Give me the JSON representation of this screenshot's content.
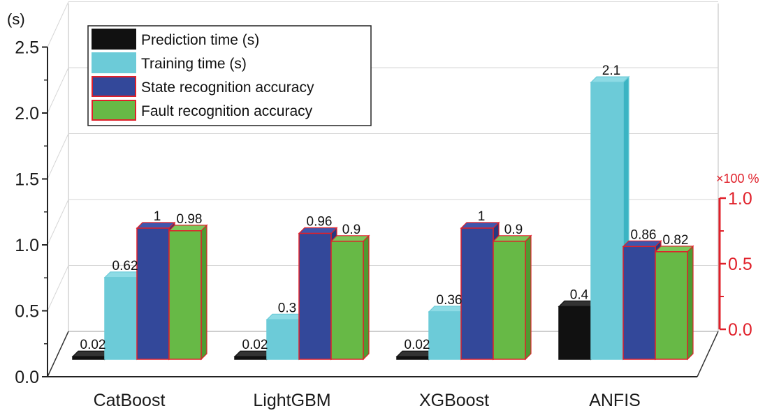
{
  "chart_data": {
    "type": "bar",
    "style": "3d-grouped",
    "categories": [
      "CatBoost",
      "LightGBM",
      "XGBoost",
      "ANFIS"
    ],
    "left_axis": {
      "unit": "(s)",
      "ylim": [
        0.0,
        2.5
      ],
      "ticks": [
        "0.0",
        "0.5",
        "1.0",
        "1.5",
        "2.0",
        "2.5"
      ]
    },
    "right_axis": {
      "unit": "×100 %",
      "ylim": [
        0.0,
        1.0
      ],
      "ticks": [
        "0.0",
        "0.5",
        "1.0"
      ],
      "color": "#e0202a"
    },
    "series": [
      {
        "name": "Prediction time (s)",
        "axis": "left",
        "color": "#111111",
        "side_color": "#000000",
        "top_color": "#333333",
        "edge_color": "#111111",
        "values": [
          0.02,
          0.02,
          0.02,
          0.4
        ],
        "labels": [
          "0.02",
          "0.02",
          "0.02",
          "0.4"
        ]
      },
      {
        "name": "Training time (s)",
        "axis": "left",
        "color": "#6ccbd8",
        "side_color": "#3bb4c3",
        "top_color": "#8ddbe5",
        "edge_color": "#6ccbd8",
        "values": [
          0.62,
          0.3,
          0.36,
          2.1
        ],
        "labels": [
          "0.62",
          "0.3",
          "0.36",
          "2.1"
        ]
      },
      {
        "name": "State recognition accuracy",
        "axis": "right",
        "color": "#33489a",
        "side_color": "#26397f",
        "top_color": "#3f56ad",
        "edge_color": "#e0202a",
        "values": [
          1.0,
          0.96,
          1.0,
          0.86
        ],
        "labels": [
          "1",
          "0.96",
          "1",
          "0.86"
        ]
      },
      {
        "name": "Fault recognition accuracy",
        "axis": "right",
        "color": "#67b946",
        "side_color": "#4e9b32",
        "top_color": "#7bc75a",
        "edge_color": "#e0202a",
        "values": [
          0.98,
          0.9,
          0.9,
          0.82
        ],
        "labels": [
          "0.98",
          "0.9",
          "0.9",
          "0.82"
        ]
      }
    ],
    "legend": {
      "placement": "top-left",
      "entries": [
        "Prediction time (s)",
        "Training time (s)",
        "State recognition accuracy",
        "Fault recognition accuracy"
      ]
    }
  }
}
